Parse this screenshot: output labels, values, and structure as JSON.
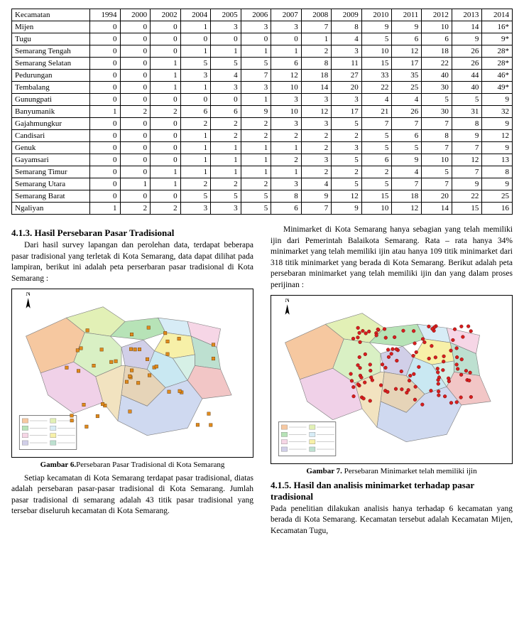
{
  "table": {
    "header_first": "Kecamatan",
    "years": [
      "1994",
      "2000",
      "2002",
      "2004",
      "2005",
      "2006",
      "2007",
      "2008",
      "2009",
      "2010",
      "2011",
      "2012",
      "2013",
      "2014"
    ],
    "rows": [
      {
        "name": "Mijen",
        "v": [
          "0",
          "0",
          "0",
          "1",
          "3",
          "3",
          "3",
          "7",
          "8",
          "9",
          "9",
          "10",
          "14",
          "16*"
        ]
      },
      {
        "name": "Tugu",
        "v": [
          "0",
          "0",
          "0",
          "0",
          "0",
          "0",
          "0",
          "1",
          "4",
          "5",
          "6",
          "6",
          "9",
          "9*"
        ]
      },
      {
        "name": "Semarang Tengah",
        "v": [
          "0",
          "0",
          "0",
          "1",
          "1",
          "1",
          "1",
          "2",
          "3",
          "10",
          "12",
          "18",
          "26",
          "28*"
        ]
      },
      {
        "name": "Semarang Selatan",
        "v": [
          "0",
          "0",
          "1",
          "5",
          "5",
          "5",
          "6",
          "8",
          "11",
          "15",
          "17",
          "22",
          "26",
          "28*"
        ]
      },
      {
        "name": "Pedurungan",
        "v": [
          "0",
          "0",
          "1",
          "3",
          "4",
          "7",
          "12",
          "18",
          "27",
          "33",
          "35",
          "40",
          "44",
          "46*"
        ]
      },
      {
        "name": "Tembalang",
        "v": [
          "0",
          "0",
          "1",
          "1",
          "3",
          "3",
          "10",
          "14",
          "20",
          "22",
          "25",
          "30",
          "40",
          "49*"
        ]
      },
      {
        "name": "Gunungpati",
        "v": [
          "0",
          "0",
          "0",
          "0",
          "0",
          "1",
          "3",
          "3",
          "3",
          "4",
          "4",
          "5",
          "5",
          "9"
        ]
      },
      {
        "name": "Banyumanik",
        "v": [
          "1",
          "2",
          "2",
          "6",
          "6",
          "9",
          "10",
          "12",
          "17",
          "21",
          "26",
          "30",
          "31",
          "32"
        ]
      },
      {
        "name": "Gajahmungkur",
        "v": [
          "0",
          "0",
          "0",
          "2",
          "2",
          "2",
          "3",
          "3",
          "5",
          "7",
          "7",
          "7",
          "8",
          "9"
        ]
      },
      {
        "name": "Candisari",
        "v": [
          "0",
          "0",
          "0",
          "1",
          "2",
          "2",
          "2",
          "2",
          "2",
          "5",
          "6",
          "8",
          "9",
          "12"
        ]
      },
      {
        "name": "Genuk",
        "v": [
          "0",
          "0",
          "0",
          "1",
          "1",
          "1",
          "1",
          "2",
          "3",
          "5",
          "5",
          "7",
          "7",
          "9"
        ]
      },
      {
        "name": "Gayamsari",
        "v": [
          "0",
          "0",
          "0",
          "1",
          "1",
          "1",
          "2",
          "3",
          "5",
          "6",
          "9",
          "10",
          "12",
          "13"
        ]
      },
      {
        "name": "Semarang Timur",
        "v": [
          "0",
          "0",
          "1",
          "1",
          "1",
          "1",
          "1",
          "2",
          "2",
          "2",
          "4",
          "5",
          "7",
          "8"
        ]
      },
      {
        "name": "Semarang Utara",
        "v": [
          "0",
          "1",
          "1",
          "2",
          "2",
          "2",
          "3",
          "4",
          "5",
          "5",
          "7",
          "7",
          "9",
          "9"
        ]
      },
      {
        "name": "Semarang Barat",
        "v": [
          "0",
          "0",
          "0",
          "5",
          "5",
          "5",
          "8",
          "9",
          "12",
          "15",
          "18",
          "20",
          "22",
          "25"
        ]
      },
      {
        "name": "Ngaliyan",
        "v": [
          "1",
          "2",
          "2",
          "3",
          "3",
          "5",
          "6",
          "7",
          "9",
          "10",
          "12",
          "14",
          "15",
          "16"
        ]
      }
    ]
  },
  "left": {
    "sec1_title": "4.1.3.   Hasil Persebaran Pasar Tradisional",
    "sec1_p1": "Dari hasil survey lapangan dan perolehan data, terdapat beberapa pasar tradisional yang terletak di Kota Semarang, data dapat dilihat pada lampiran, berikut ini adalah peta perserbaran pasar tradisional di Kota Semarang :",
    "fig6_caption_b": "Gambar 6.",
    "fig6_caption_t": "Persebaran Pasar Tradisional di Kota Semarang",
    "sec1_p2": "Setiap kecamatan di Kota Semarang terdapat pasar tradisional, diatas adalah persebaran pasar-pasar tradisional di Kota Semarang. Jumlah pasar tradisional di semarang adalah 43 titik pasar tradisional yang tersebar diseluruh kecamatan di Kota Semarang."
  },
  "right": {
    "p1": "Minimarket di Kota Semarang hanya sebagian yang telah memiliki ijin dari Pemerintah Balaikota Semarang. Rata – rata hanya 34% minimarket yang telah memiliki ijin atau hanya 109 titik minimarket dari 318 titik minimarket yang berada di Kota Semarang. Berikut adalah peta persebaran minimarket yang telah memiliki ijin dan yang dalam  proses perijinan :",
    "fig7_caption_b": "Gambar 7.",
    "fig7_caption_t": " Persebaran Minimarket telah memiliki ijin",
    "sec2_title": "4.1.5.   Hasil dan analisis minimarket terhadap pasar tradisional",
    "sec2_p1": "Pada penelitian dilakukan analisis hanya terhadap 6 kecamatan yang berada di Kota Semarang. Kecamatan tersebut adalah Kecamatan Mijen, Kecamatan Tugu,"
  },
  "map": {
    "region_colors": [
      "#f6c8a0",
      "#e2f0b6",
      "#b7e3b7",
      "#d7ecf6",
      "#f6d6e6",
      "#f7f0a8",
      "#d1cfe8",
      "#bde0d0",
      "#f2c6c6",
      "#c9e8f2",
      "#e6d4b8",
      "#d9f0c4",
      "#f0d1e8",
      "#cfd9f0",
      "#f2e3c0",
      "#d6f0e6"
    ],
    "region_border": "#808080",
    "outer_border": "#000000",
    "compass_color": "#000000",
    "legend_bg": "#ffffff",
    "pasar_marker_color": "#e08a1c",
    "pasar_marker_count": 43,
    "mini_marker_color": "#d81e1e",
    "mini_marker_count": 109,
    "north_label": "N"
  }
}
